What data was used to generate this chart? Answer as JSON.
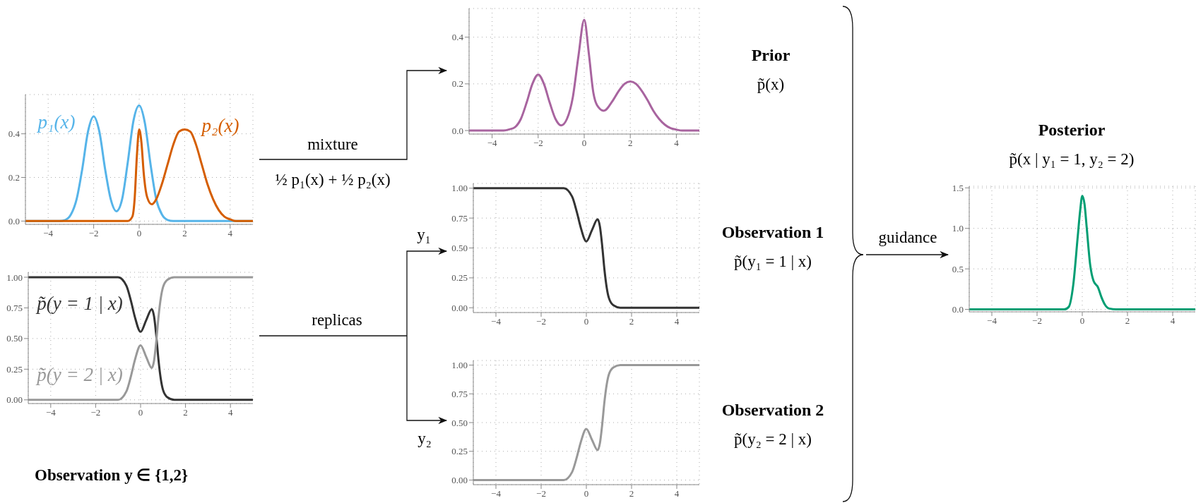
{
  "chart_data": [
    {
      "type": "line",
      "xlim": [
        -5,
        5
      ],
      "ylim": [
        -0.015,
        0.58
      ],
      "xticks": [
        -4,
        -2,
        0,
        2,
        4
      ],
      "yticks": [
        {
          "value": 0,
          "label": "0.0"
        },
        0.2,
        0.4
      ],
      "grid": true,
      "annotations": [
        "mixture",
        "½ p₁(x) + ½ p₂(x)"
      ],
      "series": [
        {
          "name": "p₁(x)",
          "color": "#56b4e9",
          "x": [
            -5,
            -3.5,
            -3.25,
            -3,
            -2.75,
            -2.5,
            -2.25,
            -2,
            -1.75,
            -1.5,
            -1.25,
            -1,
            -0.75,
            -0.5,
            -0.25,
            0,
            0.25,
            0.5,
            0.75,
            1,
            1.25,
            1.5,
            5
          ],
          "values": [
            0,
            0,
            0.005,
            0.03,
            0.1,
            0.24,
            0.41,
            0.48,
            0.41,
            0.24,
            0.1,
            0.045,
            0.1,
            0.27,
            0.46,
            0.53,
            0.45,
            0.26,
            0.1,
            0.03,
            0.005,
            0,
            0
          ]
        },
        {
          "name": "p₂(x)",
          "color": "#d55e00",
          "x": [
            -5,
            -0.5,
            -0.3,
            -0.2,
            -0.1,
            0,
            0.1,
            0.2,
            0.35,
            0.55,
            0.75,
            1,
            1.25,
            1.5,
            1.75,
            2,
            2.25,
            2.5,
            2.75,
            3,
            3.25,
            3.5,
            3.75,
            4,
            4.25,
            5
          ],
          "values": [
            0,
            0,
            0.02,
            0.1,
            0.3,
            0.42,
            0.36,
            0.22,
            0.11,
            0.077,
            0.1,
            0.17,
            0.26,
            0.35,
            0.41,
            0.42,
            0.41,
            0.35,
            0.26,
            0.17,
            0.1,
            0.05,
            0.02,
            0.008,
            0,
            0
          ]
        }
      ]
    },
    {
      "type": "line",
      "xlim": [
        -5,
        5
      ],
      "ylim": [
        -0.03,
        1.04
      ],
      "xticks": [
        -4,
        -2,
        0,
        2,
        4
      ],
      "yticks": [
        {
          "value": 0,
          "label": "0.00"
        },
        0.25,
        {
          "value": 0.5,
          "label": "0.50"
        },
        0.75,
        {
          "value": 1,
          "label": "1.00"
        }
      ],
      "grid": true,
      "annotations": [
        "replicas",
        "y₁",
        "y₂",
        "Observation  y ∈ {1,2}"
      ],
      "series": [
        {
          "name": "p̃(y = 1 | x)",
          "color": "#333333",
          "x": [
            -5,
            -1,
            -0.63,
            -0.42,
            -0.26,
            0,
            0.25,
            0.5,
            0.6,
            0.7,
            0.8,
            0.9,
            1,
            1.2,
            1.5,
            5
          ],
          "values": [
            1,
            1,
            0.93,
            0.8,
            0.68,
            0.555,
            0.65,
            0.74,
            0.68,
            0.52,
            0.32,
            0.17,
            0.08,
            0.02,
            0,
            0
          ]
        },
        {
          "name": "p̃(y = 2 | x)",
          "color": "#999999",
          "x": [
            -5,
            -1,
            -0.63,
            -0.42,
            -0.26,
            0,
            0.25,
            0.5,
            0.6,
            0.7,
            0.8,
            0.9,
            1,
            1.2,
            1.5,
            5
          ],
          "values": [
            0,
            0,
            0.07,
            0.2,
            0.32,
            0.445,
            0.35,
            0.26,
            0.32,
            0.48,
            0.68,
            0.83,
            0.92,
            0.98,
            1,
            1
          ]
        }
      ]
    },
    {
      "type": "line",
      "annotations": [
        "Prior",
        "p̃(x)"
      ],
      "xlim": [
        -5,
        5
      ],
      "ylim": [
        -0.015,
        0.523
      ],
      "xticks": [
        -4,
        -2,
        0,
        2,
        4
      ],
      "yticks": [
        {
          "value": 0,
          "label": "0.0"
        },
        0.2,
        0.4
      ],
      "grid": true,
      "series": [
        {
          "color": "#a8649f",
          "x": [
            -5,
            -3.5,
            -3.25,
            -3,
            -2.75,
            -2.5,
            -2.25,
            -2,
            -1.75,
            -1.5,
            -1.25,
            -1,
            -0.75,
            -0.5,
            -0.25,
            0,
            0.2,
            0.4,
            0.55,
            0.85,
            1.25,
            1.5,
            1.75,
            2,
            2.25,
            2.5,
            2.75,
            3,
            3.25,
            3.5,
            3.75,
            4,
            4.25,
            5
          ],
          "values": [
            0,
            0,
            0.005,
            0.015,
            0.05,
            0.12,
            0.2,
            0.24,
            0.2,
            0.12,
            0.05,
            0.022,
            0.05,
            0.14,
            0.32,
            0.475,
            0.33,
            0.16,
            0.11,
            0.085,
            0.13,
            0.17,
            0.2,
            0.21,
            0.2,
            0.17,
            0.13,
            0.085,
            0.05,
            0.025,
            0.01,
            0.004,
            0,
            0
          ]
        }
      ]
    },
    {
      "type": "line",
      "annotations": [
        "Observation 1",
        "p̃(y₁ = 1 | x)"
      ],
      "xlim": [
        -5,
        5
      ],
      "ylim": [
        -0.04,
        1.04
      ],
      "xticks": [
        -4,
        -2,
        0,
        2,
        4
      ],
      "yticks": [
        {
          "value": 0,
          "label": "0.00"
        },
        0.25,
        {
          "value": 0.5,
          "label": "0.50"
        },
        0.75,
        {
          "value": 1,
          "label": "1.00"
        }
      ],
      "grid": true,
      "series": [
        {
          "color": "#333333",
          "x": [
            -5,
            -1,
            -0.63,
            -0.42,
            -0.26,
            0,
            0.25,
            0.5,
            0.6,
            0.7,
            0.8,
            0.9,
            1,
            1.2,
            1.5,
            5
          ],
          "values": [
            1,
            1,
            0.93,
            0.8,
            0.68,
            0.555,
            0.65,
            0.74,
            0.68,
            0.52,
            0.32,
            0.17,
            0.08,
            0.02,
            0,
            0
          ]
        }
      ]
    },
    {
      "type": "line",
      "annotations": [
        "Observation 2",
        "p̃(y₂ = 2 | x)"
      ],
      "xlim": [
        -5,
        5
      ],
      "ylim": [
        -0.04,
        1.04
      ],
      "xticks": [
        -4,
        -2,
        0,
        2,
        4
      ],
      "yticks": [
        {
          "value": 0,
          "label": "0.00"
        },
        0.25,
        {
          "value": 0.5,
          "label": "0.50"
        },
        0.75,
        {
          "value": 1,
          "label": "1.00"
        }
      ],
      "grid": true,
      "series": [
        {
          "color": "#999999",
          "x": [
            -5,
            -1,
            -0.63,
            -0.42,
            -0.26,
            0,
            0.25,
            0.5,
            0.6,
            0.7,
            0.8,
            0.9,
            1,
            1.2,
            1.5,
            5
          ],
          "values": [
            0,
            0,
            0.07,
            0.2,
            0.32,
            0.445,
            0.35,
            0.26,
            0.32,
            0.48,
            0.68,
            0.83,
            0.92,
            0.98,
            1,
            1
          ]
        }
      ]
    },
    {
      "type": "line",
      "title": "Posterior",
      "subtitle": "p̃(x | y₁ = 1, y₂ = 2)",
      "xlim": [
        -5,
        5
      ],
      "ylim": [
        -0.03,
        1.52
      ],
      "xticks": [
        -4,
        -2,
        0,
        2,
        4
      ],
      "yticks": [
        {
          "value": 0,
          "label": "0.0"
        },
        0.5,
        {
          "value": 1,
          "label": "1.0"
        },
        1.5
      ],
      "grid": true,
      "annotations": [
        "guidance"
      ],
      "series": [
        {
          "color": "#009e73",
          "x": [
            -5,
            -0.8,
            -0.6,
            -0.4,
            -0.2,
            -0.1,
            0,
            0.1,
            0.2,
            0.35,
            0.5,
            0.7,
            0.85,
            1,
            1.2,
            1.5,
            5
          ],
          "values": [
            0,
            0,
            0.03,
            0.3,
            0.9,
            1.2,
            1.4,
            1.3,
            1.0,
            0.55,
            0.35,
            0.27,
            0.15,
            0.06,
            0.01,
            0,
            0
          ]
        }
      ]
    }
  ]
}
